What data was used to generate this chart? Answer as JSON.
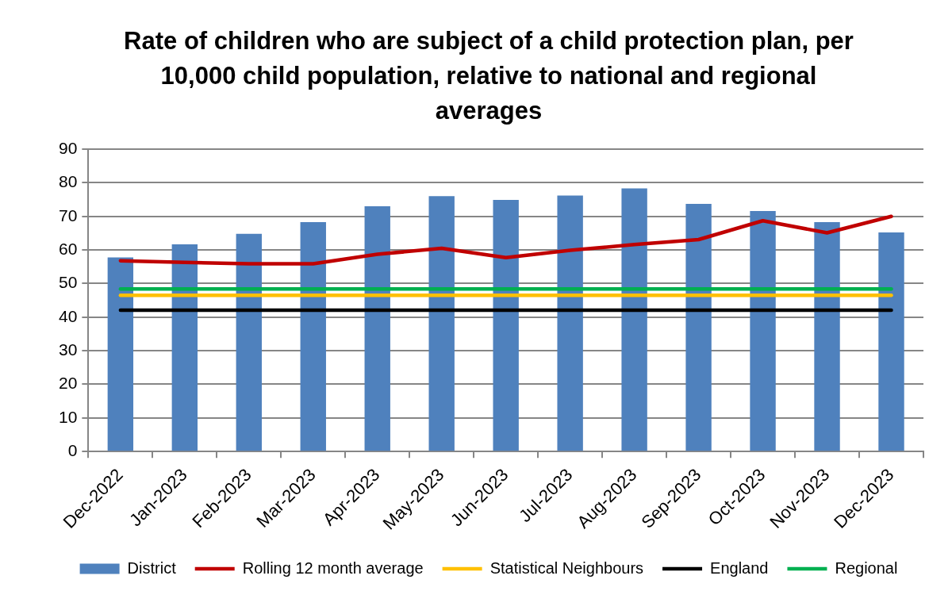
{
  "chart_data": {
    "type": "bar",
    "title": "Rate of children who are subject of a child protection plan, per 10,000 child population, relative to national and regional averages",
    "categories": [
      "Dec-2022",
      "Jan-2023",
      "Feb-2023",
      "Mar-2023",
      "Apr-2023",
      "May-2023",
      "Jun-2023",
      "Jul-2023",
      "Aug-2023",
      "Sep-2023",
      "Oct-2023",
      "Nov-2023",
      "Dec-2023"
    ],
    "series": [
      {
        "name": "District",
        "color": "#4f81bd",
        "values": [
          57.8,
          61.7,
          64.8,
          68.3,
          73.0,
          76.0,
          74.9,
          76.2,
          78.3,
          73.7,
          71.6,
          68.3,
          65.2
        ]
      },
      {
        "name": "Rolling 12 month average",
        "type": "line",
        "color": "#c00000",
        "values": [
          56.8,
          56.3,
          55.9,
          55.9,
          58.7,
          60.5,
          57.7,
          59.9,
          61.6,
          63.1,
          68.7,
          65.1,
          70.0
        ]
      },
      {
        "name": "Statistical Neighbours",
        "type": "line",
        "color": "#ffc000",
        "values": [
          46.5,
          46.5,
          46.5,
          46.5,
          46.5,
          46.5,
          46.5,
          46.5,
          46.5,
          46.5,
          46.5,
          46.5,
          46.5
        ]
      },
      {
        "name": "England",
        "type": "line",
        "color": "#000000",
        "values": [
          42.1,
          42.1,
          42.1,
          42.1,
          42.1,
          42.1,
          42.1,
          42.1,
          42.1,
          42.1,
          42.1,
          42.1,
          42.1
        ]
      },
      {
        "name": "Regional",
        "type": "line",
        "color": "#00b050",
        "values": [
          48.4,
          48.4,
          48.4,
          48.4,
          48.4,
          48.4,
          48.4,
          48.4,
          48.4,
          48.4,
          48.4,
          48.4,
          48.4
        ]
      }
    ],
    "ylim": [
      0,
      90
    ],
    "yticks": [
      0,
      10,
      20,
      30,
      40,
      50,
      60,
      70,
      80,
      90
    ],
    "grid": "y",
    "legend": "bottom",
    "marker": "none"
  }
}
